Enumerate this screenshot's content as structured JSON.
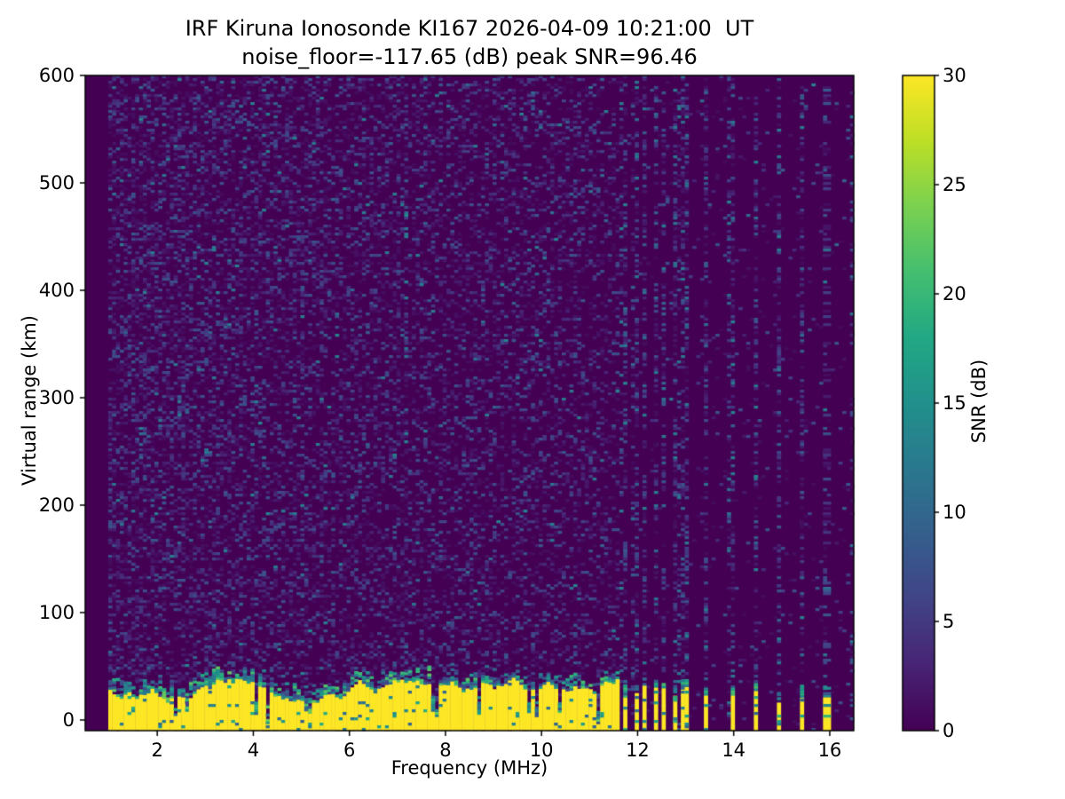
{
  "chart_data": {
    "type": "heatmap",
    "title": "IRF Kiruna Ionosonde KI167 2026-04-09 10:21:00  UT",
    "subtitle": "noise_floor=-117.65 (dB) peak SNR=96.46",
    "xlabel": "Frequency (MHz)",
    "ylabel": "Virtual range (km)",
    "colorbar_label": "SNR (dB)",
    "station": "IRF Kiruna Ionosonde KI167",
    "timestamp_ut": "2026-04-09 10:21:00",
    "noise_floor_db": -117.65,
    "peak_snr_db": 96.46,
    "x_range_mhz": [
      0.5,
      16.5
    ],
    "y_range_km": [
      -10,
      600
    ],
    "snr_range_db": [
      0,
      30
    ],
    "x_ticks_mhz": [
      2,
      4,
      6,
      8,
      10,
      12,
      14,
      16
    ],
    "y_ticks_km": [
      0,
      100,
      200,
      300,
      400,
      500,
      600
    ],
    "colorbar_ticks_db": [
      0,
      5,
      10,
      15,
      20,
      25,
      30
    ],
    "colormap": "viridis",
    "colormap_stops": [
      [
        0.0,
        "#440154"
      ],
      [
        0.1,
        "#482475"
      ],
      [
        0.2,
        "#414487"
      ],
      [
        0.3,
        "#355f8d"
      ],
      [
        0.4,
        "#2a788e"
      ],
      [
        0.5,
        "#21918c"
      ],
      [
        0.6,
        "#22a884"
      ],
      [
        0.7,
        "#44bf70"
      ],
      [
        0.8,
        "#7ad151"
      ],
      [
        0.9,
        "#bddf26"
      ],
      [
        1.0,
        "#fde725"
      ]
    ],
    "features": {
      "no_data_below_mhz": 1.0,
      "ground_echo_band": {
        "freq_start_mhz": 1.0,
        "freq_end_mhz": 11.62,
        "mean_top_km": 27,
        "top_jitter_km": 10,
        "snr_db": 30,
        "notch_probability": 0.05
      },
      "rfi_bar_cluster_mhz": [
        11.7,
        11.94,
        12.16,
        12.36,
        12.56,
        12.75,
        12.9,
        13.04
      ],
      "rfi_bars_sparse_mhz": [
        13.45,
        13.95,
        14.45,
        14.95,
        15.45,
        15.92
      ],
      "noise_column_extra_mhz": [
        7.2,
        16.45
      ],
      "background_snr_db": 0
    },
    "render_params": {
      "seed": 167,
      "freq_bins": 200,
      "range_bins": 246,
      "speckle_density_low_freq": 0.42,
      "speckle_density_slope_per_mhz": 0.015,
      "speckle_density_high_freq": 0.035,
      "stripe_column_density": 0.24
    }
  }
}
